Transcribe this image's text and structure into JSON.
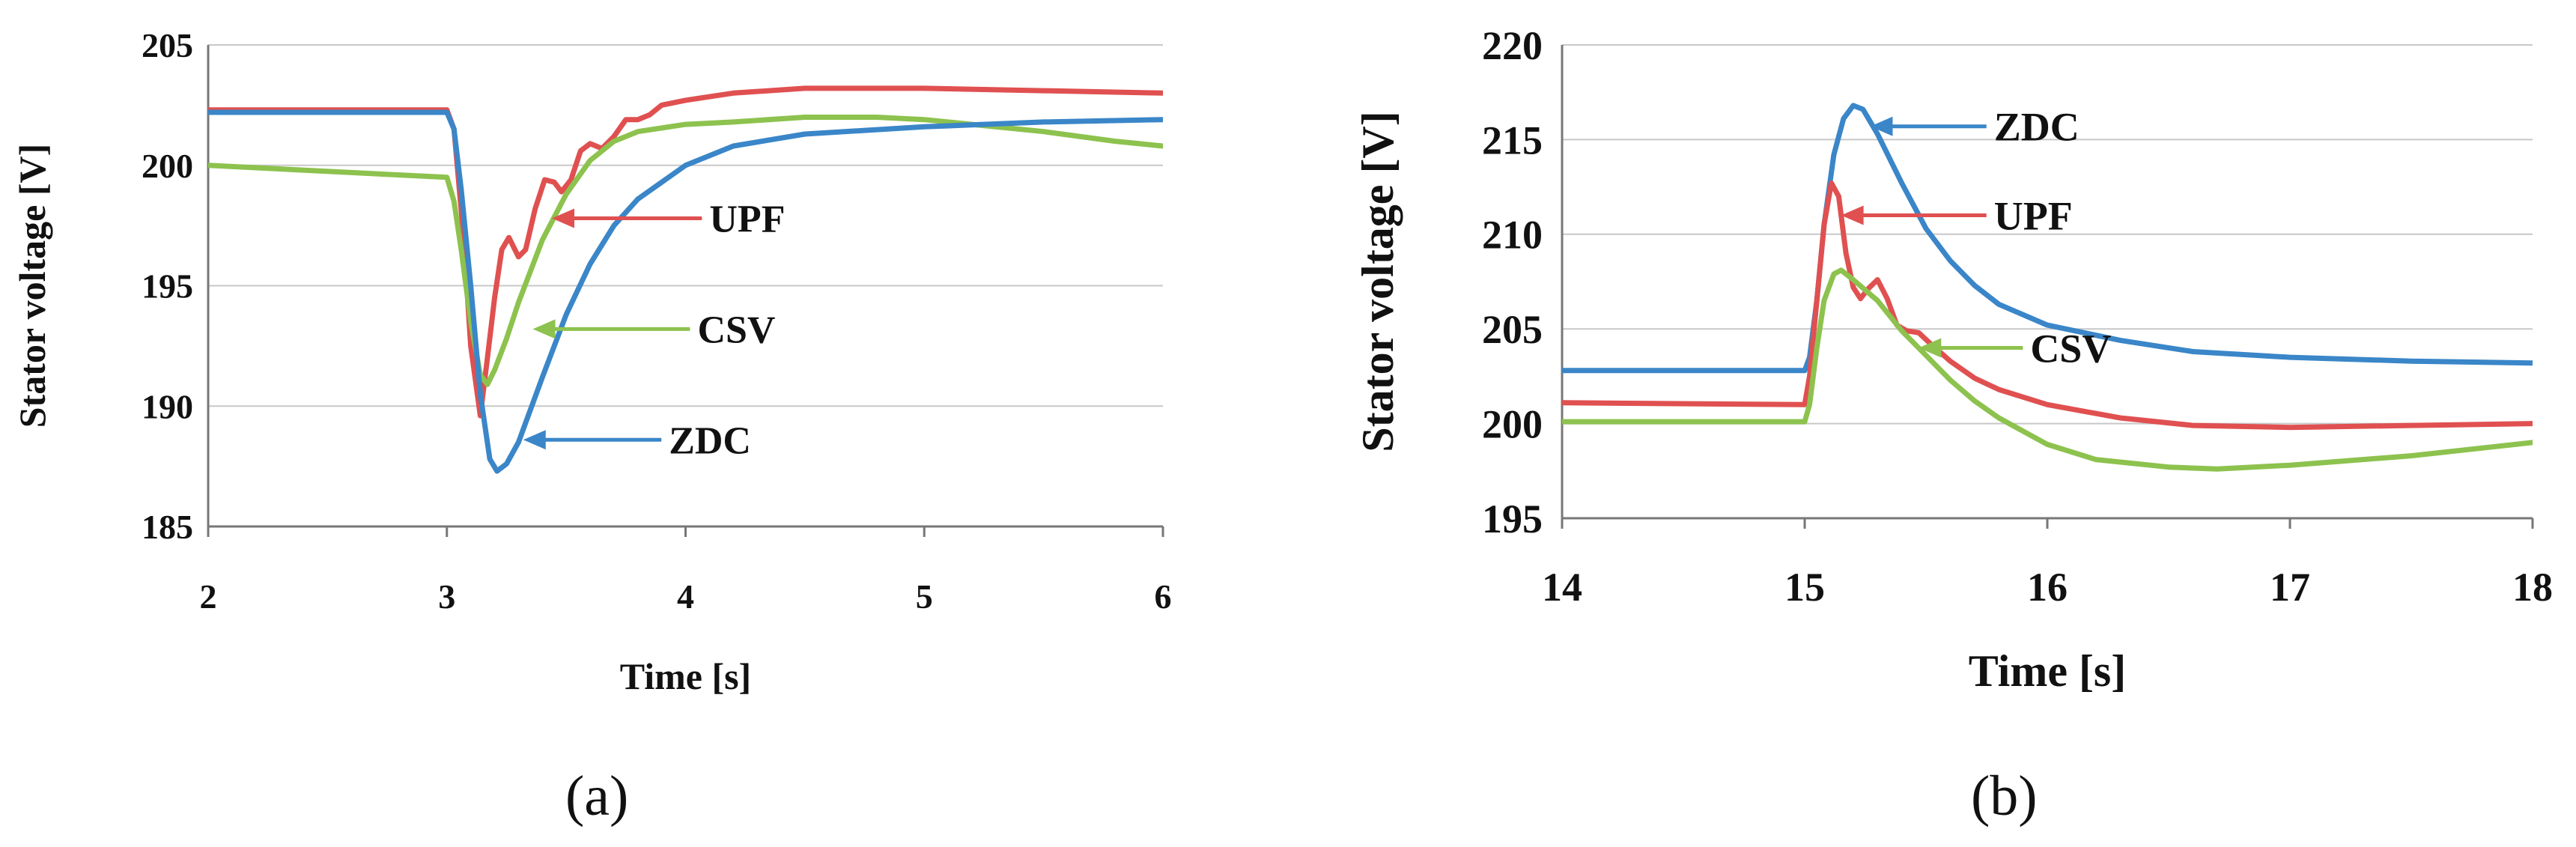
{
  "chart_data": [
    {
      "id": "a",
      "type": "line",
      "panel_label": "(a)",
      "xlabel": "Time [s]",
      "ylabel": "Stator voltage [V]",
      "xlim": [
        2,
        6
      ],
      "ylim": [
        185,
        205
      ],
      "xticks": [
        2,
        3,
        4,
        5,
        6
      ],
      "yticks": [
        185,
        190,
        195,
        200,
        205
      ],
      "grid": "horizontal",
      "series": [
        {
          "name": "UPF",
          "color": "#e05050",
          "points": [
            [
              2,
              202.3
            ],
            [
              3.0,
              202.3
            ],
            [
              3.03,
              201.5
            ],
            [
              3.07,
              197
            ],
            [
              3.1,
              192.5
            ],
            [
              3.14,
              189.6
            ],
            [
              3.17,
              192
            ],
            [
              3.2,
              194.5
            ],
            [
              3.23,
              196.5
            ],
            [
              3.26,
              197
            ],
            [
              3.3,
              196.2
            ],
            [
              3.33,
              196.5
            ],
            [
              3.37,
              198.2
            ],
            [
              3.41,
              199.4
            ],
            [
              3.45,
              199.3
            ],
            [
              3.48,
              198.9
            ],
            [
              3.52,
              199.4
            ],
            [
              3.56,
              200.6
            ],
            [
              3.6,
              200.9
            ],
            [
              3.65,
              200.7
            ],
            [
              3.7,
              201.2
            ],
            [
              3.75,
              201.9
            ],
            [
              3.8,
              201.9
            ],
            [
              3.85,
              202.1
            ],
            [
              3.9,
              202.5
            ],
            [
              4.0,
              202.7
            ],
            [
              4.2,
              203.0
            ],
            [
              4.5,
              203.2
            ],
            [
              5.0,
              203.2
            ],
            [
              5.5,
              203.1
            ],
            [
              6.0,
              203.0
            ]
          ]
        },
        {
          "name": "CSV",
          "color": "#8dc24e",
          "points": [
            [
              2,
              200
            ],
            [
              3.0,
              199.5
            ],
            [
              3.03,
              198.5
            ],
            [
              3.06,
              196.5
            ],
            [
              3.1,
              193.5
            ],
            [
              3.14,
              191.3
            ],
            [
              3.17,
              190.9
            ],
            [
              3.2,
              191.5
            ],
            [
              3.25,
              192.8
            ],
            [
              3.3,
              194.3
            ],
            [
              3.4,
              196.9
            ],
            [
              3.5,
              198.8
            ],
            [
              3.6,
              200.2
            ],
            [
              3.7,
              201.0
            ],
            [
              3.8,
              201.4
            ],
            [
              4.0,
              201.7
            ],
            [
              4.2,
              201.8
            ],
            [
              4.5,
              202.0
            ],
            [
              4.8,
              202.0
            ],
            [
              5.0,
              201.9
            ],
            [
              5.2,
              201.7
            ],
            [
              5.5,
              201.4
            ],
            [
              5.8,
              201.0
            ],
            [
              6.0,
              200.8
            ]
          ]
        },
        {
          "name": "ZDC",
          "color": "#3a86c8",
          "points": [
            [
              2,
              202.2
            ],
            [
              3.0,
              202.2
            ],
            [
              3.03,
              201.5
            ],
            [
              3.06,
              199
            ],
            [
              3.1,
              195
            ],
            [
              3.14,
              190.5
            ],
            [
              3.18,
              187.8
            ],
            [
              3.21,
              187.3
            ],
            [
              3.25,
              187.6
            ],
            [
              3.3,
              188.5
            ],
            [
              3.4,
              191.2
            ],
            [
              3.5,
              193.8
            ],
            [
              3.6,
              195.9
            ],
            [
              3.7,
              197.5
            ],
            [
              3.8,
              198.6
            ],
            [
              4.0,
              200.0
            ],
            [
              4.2,
              200.8
            ],
            [
              4.5,
              201.3
            ],
            [
              5.0,
              201.6
            ],
            [
              5.5,
              201.8
            ],
            [
              6.0,
              201.9
            ]
          ]
        }
      ],
      "annotations": [
        {
          "text": "UPF",
          "series": "UPF",
          "point_x": 3.44,
          "point_y": 197.8,
          "text_x": 4.1,
          "text_y": 197.8
        },
        {
          "text": "CSV",
          "series": "CSV",
          "point_x": 3.36,
          "point_y": 193.2,
          "text_x": 4.05,
          "text_y": 193.2
        },
        {
          "text": "ZDC",
          "series": "ZDC",
          "point_x": 3.32,
          "point_y": 188.6,
          "text_x": 3.93,
          "text_y": 188.6
        }
      ]
    },
    {
      "id": "b",
      "type": "line",
      "panel_label": "(b)",
      "xlabel": "Time [s]",
      "ylabel": "Stator voltage [V]",
      "xlim": [
        14,
        18
      ],
      "ylim": [
        195,
        220
      ],
      "xticks": [
        14,
        15,
        16,
        17,
        18
      ],
      "yticks": [
        195,
        200,
        205,
        210,
        215,
        220
      ],
      "grid": "horizontal",
      "series": [
        {
          "name": "ZDC",
          "color": "#3a86c8",
          "points": [
            [
              14,
              202.8
            ],
            [
              15.0,
              202.8
            ],
            [
              15.02,
              203.5
            ],
            [
              15.05,
              206.5
            ],
            [
              15.08,
              210.5
            ],
            [
              15.12,
              214.2
            ],
            [
              15.16,
              216.1
            ],
            [
              15.2,
              216.8
            ],
            [
              15.24,
              216.6
            ],
            [
              15.3,
              215.3
            ],
            [
              15.4,
              212.7
            ],
            [
              15.5,
              210.3
            ],
            [
              15.6,
              208.6
            ],
            [
              15.7,
              207.3
            ],
            [
              15.8,
              206.3
            ],
            [
              16.0,
              205.2
            ],
            [
              16.3,
              204.4
            ],
            [
              16.6,
              203.8
            ],
            [
              17.0,
              203.5
            ],
            [
              17.5,
              203.3
            ],
            [
              18.0,
              203.2
            ]
          ]
        },
        {
          "name": "UPF",
          "color": "#e05050",
          "points": [
            [
              14,
              201.1
            ],
            [
              15.0,
              201.0
            ],
            [
              15.02,
              202.5
            ],
            [
              15.05,
              206.5
            ],
            [
              15.08,
              210.5
            ],
            [
              15.11,
              212.7
            ],
            [
              15.14,
              212.0
            ],
            [
              15.17,
              209.0
            ],
            [
              15.2,
              207.2
            ],
            [
              15.23,
              206.6
            ],
            [
              15.26,
              207.1
            ],
            [
              15.3,
              207.6
            ],
            [
              15.34,
              206.6
            ],
            [
              15.38,
              205.2
            ],
            [
              15.42,
              204.9
            ],
            [
              15.47,
              204.8
            ],
            [
              15.52,
              204.2
            ],
            [
              15.6,
              203.3
            ],
            [
              15.7,
              202.4
            ],
            [
              15.8,
              201.8
            ],
            [
              16.0,
              201.0
            ],
            [
              16.3,
              200.3
            ],
            [
              16.6,
              199.9
            ],
            [
              17.0,
              199.8
            ],
            [
              17.5,
              199.9
            ],
            [
              18.0,
              200.0
            ]
          ]
        },
        {
          "name": "CSV",
          "color": "#8dc24e",
          "points": [
            [
              14,
              200.1
            ],
            [
              15.0,
              200.1
            ],
            [
              15.02,
              201.0
            ],
            [
              15.05,
              204.0
            ],
            [
              15.08,
              206.5
            ],
            [
              15.12,
              207.9
            ],
            [
              15.15,
              208.1
            ],
            [
              15.2,
              207.6
            ],
            [
              15.3,
              206.5
            ],
            [
              15.4,
              204.9
            ],
            [
              15.5,
              203.6
            ],
            [
              15.6,
              202.3
            ],
            [
              15.7,
              201.2
            ],
            [
              15.8,
              200.3
            ],
            [
              16.0,
              198.9
            ],
            [
              16.2,
              198.1
            ],
            [
              16.5,
              197.7
            ],
            [
              16.7,
              197.6
            ],
            [
              17.0,
              197.8
            ],
            [
              17.5,
              198.3
            ],
            [
              18.0,
              199.0
            ]
          ]
        }
      ],
      "annotations": [
        {
          "text": "ZDC",
          "series": "ZDC",
          "point_x": 15.27,
          "point_y": 215.7,
          "text_x": 15.78,
          "text_y": 215.7
        },
        {
          "text": "UPF",
          "series": "UPF",
          "point_x": 15.15,
          "point_y": 211.0,
          "text_x": 15.78,
          "text_y": 211.0
        },
        {
          "text": "CSV",
          "series": "CSV",
          "point_x": 15.47,
          "point_y": 204.0,
          "text_x": 15.93,
          "text_y": 204.0
        }
      ]
    }
  ]
}
